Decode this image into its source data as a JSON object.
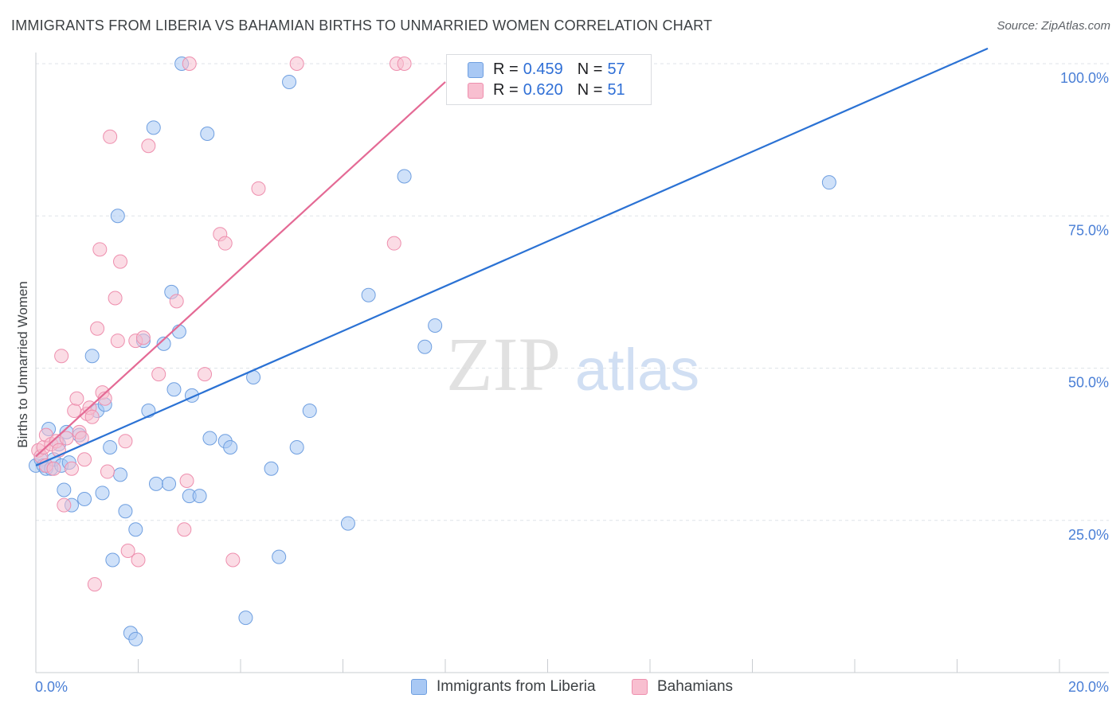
{
  "title": "IMMIGRANTS FROM LIBERIA VS BAHAMIAN BIRTHS TO UNMARRIED WOMEN CORRELATION CHART",
  "source": "Source: ZipAtlas.com",
  "watermark": {
    "zip": "ZIP",
    "atlas": "atlas"
  },
  "legend": {
    "r_label": "R =",
    "n_label": "N =",
    "rows": [
      {
        "r": "0.459",
        "n": "57"
      },
      {
        "r": "0.620",
        "n": "51"
      }
    ]
  },
  "colors": {
    "blue_fill": "#a8c8f4",
    "blue_stroke": "#6f9fe0",
    "blue_line": "#2b72d4",
    "pink_fill": "#f8bfd0",
    "pink_stroke": "#ee8fae",
    "pink_line": "#e46a95",
    "tick": "#4a7fd6",
    "grid": "#dfe3e8"
  },
  "chart_data": {
    "type": "scatter",
    "title": "IMMIGRANTS FROM LIBERIA VS BAHAMIAN BIRTHS TO UNMARRIED WOMEN CORRELATION CHART",
    "xlabel": "",
    "ylabel": "Births to Unmarried Women",
    "xlim": [
      0,
      20
    ],
    "ylim": [
      0,
      100
    ],
    "x_tick_labels": [
      "0.0%",
      "20.0%"
    ],
    "y_tick_labels": [
      "25.0%",
      "50.0%",
      "75.0%",
      "100.0%"
    ],
    "y_ticks": [
      25,
      50,
      75,
      100
    ],
    "series": [
      {
        "name": "Immigrants from Liberia",
        "color": "blue",
        "r": 0.459,
        "n": 57,
        "trend": {
          "x": [
            0,
            18.6
          ],
          "y": [
            34,
            102.5
          ]
        },
        "points": [
          [
            0.0,
            34
          ],
          [
            0.1,
            35
          ],
          [
            0.15,
            34
          ],
          [
            0.2,
            33.5
          ],
          [
            0.25,
            40
          ],
          [
            0.3,
            33.5
          ],
          [
            0.35,
            35
          ],
          [
            0.45,
            37.5
          ],
          [
            0.5,
            34
          ],
          [
            0.55,
            30
          ],
          [
            0.6,
            39.5
          ],
          [
            0.65,
            34.5
          ],
          [
            0.7,
            27.5
          ],
          [
            0.85,
            39
          ],
          [
            0.95,
            28.5
          ],
          [
            1.1,
            52
          ],
          [
            1.2,
            43
          ],
          [
            1.3,
            29.5
          ],
          [
            1.35,
            44
          ],
          [
            1.45,
            37
          ],
          [
            1.5,
            18.5
          ],
          [
            1.6,
            75
          ],
          [
            1.65,
            32.5
          ],
          [
            1.75,
            26.5
          ],
          [
            1.85,
            6.5
          ],
          [
            1.95,
            23.5
          ],
          [
            1.95,
            5.5
          ],
          [
            2.1,
            54.5
          ],
          [
            2.2,
            43
          ],
          [
            2.3,
            89.5
          ],
          [
            2.35,
            31
          ],
          [
            2.5,
            54
          ],
          [
            2.6,
            31
          ],
          [
            2.65,
            62.5
          ],
          [
            2.7,
            46.5
          ],
          [
            2.8,
            56
          ],
          [
            2.85,
            100
          ],
          [
            3.0,
            29
          ],
          [
            3.05,
            45.5
          ],
          [
            3.2,
            29
          ],
          [
            3.35,
            88.5
          ],
          [
            3.4,
            38.5
          ],
          [
            3.7,
            38
          ],
          [
            3.8,
            37
          ],
          [
            4.1,
            9
          ],
          [
            4.25,
            48.5
          ],
          [
            4.6,
            33.5
          ],
          [
            4.75,
            19
          ],
          [
            4.95,
            97
          ],
          [
            5.1,
            37
          ],
          [
            5.35,
            43
          ],
          [
            6.1,
            24.5
          ],
          [
            6.5,
            62
          ],
          [
            7.2,
            81.5
          ],
          [
            7.6,
            53.5
          ],
          [
            7.8,
            57
          ],
          [
            15.5,
            80.5
          ]
        ]
      },
      {
        "name": "Bahamians",
        "color": "pink",
        "r": 0.62,
        "n": 51,
        "trend": {
          "x": [
            0,
            8.0
          ],
          "y": [
            35.5,
            97
          ]
        },
        "points": [
          [
            0.05,
            36.5
          ],
          [
            0.1,
            35.5
          ],
          [
            0.15,
            37
          ],
          [
            0.2,
            34
          ],
          [
            0.2,
            39
          ],
          [
            0.3,
            37.5
          ],
          [
            0.35,
            33.5
          ],
          [
            0.4,
            38
          ],
          [
            0.45,
            36.5
          ],
          [
            0.5,
            52
          ],
          [
            0.55,
            27.5
          ],
          [
            0.6,
            38.5
          ],
          [
            0.7,
            33.5
          ],
          [
            0.75,
            43
          ],
          [
            0.8,
            45
          ],
          [
            0.85,
            39.5
          ],
          [
            0.9,
            38.5
          ],
          [
            0.95,
            35
          ],
          [
            1.0,
            42.5
          ],
          [
            1.05,
            43.5
          ],
          [
            1.1,
            42
          ],
          [
            1.15,
            14.5
          ],
          [
            1.2,
            56.5
          ],
          [
            1.25,
            69.5
          ],
          [
            1.3,
            46
          ],
          [
            1.35,
            45
          ],
          [
            1.4,
            33
          ],
          [
            1.45,
            88
          ],
          [
            1.55,
            61.5
          ],
          [
            1.6,
            54.5
          ],
          [
            1.65,
            67.5
          ],
          [
            1.75,
            38
          ],
          [
            1.8,
            20
          ],
          [
            1.95,
            54.5
          ],
          [
            2.0,
            18.5
          ],
          [
            2.1,
            55
          ],
          [
            2.2,
            86.5
          ],
          [
            2.4,
            49
          ],
          [
            2.75,
            61
          ],
          [
            2.9,
            23.5
          ],
          [
            2.95,
            31.5
          ],
          [
            3.0,
            100
          ],
          [
            3.3,
            49
          ],
          [
            3.6,
            72
          ],
          [
            3.7,
            70.5
          ],
          [
            3.85,
            18.5
          ],
          [
            4.35,
            79.5
          ],
          [
            5.1,
            100
          ],
          [
            7.0,
            70.5
          ],
          [
            7.05,
            100
          ],
          [
            7.2,
            100
          ]
        ]
      }
    ]
  },
  "bottom_legend": [
    {
      "label": "Immigrants from Liberia"
    },
    {
      "label": "Bahamians"
    }
  ]
}
